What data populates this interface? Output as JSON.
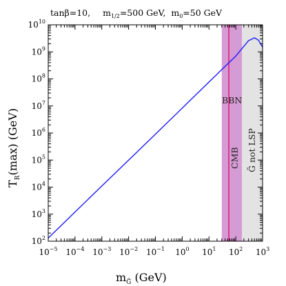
{
  "chart_data": {
    "type": "line",
    "title": "tanβ=10,   m1/2=500 GeV,  m0=50 GeV",
    "title_parts": {
      "tanb": "tanβ=10,",
      "mhalf_base": "m",
      "mhalf_sub": "1/2",
      "mhalf_val": "=500 GeV,",
      "m0_base": "m",
      "m0_sub": "0",
      "m0_val": "=50 GeV"
    },
    "xlabel": {
      "base": "m",
      "sub": "G̃",
      "rest": "  (GeV)"
    },
    "ylabel": {
      "base": "T",
      "sub": "R",
      "rest": "(max)  (GeV)"
    },
    "x_scale": "log",
    "y_scale": "log",
    "xlim": [
      1e-05,
      1000
    ],
    "ylim": [
      100,
      10000000000.0
    ],
    "x_ticks": [
      {
        "value": 1e-05,
        "base": "10",
        "exp": "−5"
      },
      {
        "value": 0.0001,
        "base": "10",
        "exp": "−4"
      },
      {
        "value": 0.001,
        "base": "10",
        "exp": "−3"
      },
      {
        "value": 0.01,
        "base": "10",
        "exp": "−2"
      },
      {
        "value": 0.1,
        "base": "10",
        "exp": "−1"
      },
      {
        "value": 1,
        "base": "10",
        "exp": "0"
      },
      {
        "value": 10,
        "base": "10",
        "exp": "1"
      },
      {
        "value": 100,
        "base": "10",
        "exp": "2"
      },
      {
        "value": 1000,
        "base": "10",
        "exp": "3"
      }
    ],
    "y_ticks": [
      {
        "value": 100,
        "base": "10",
        "exp": "2"
      },
      {
        "value": 1000,
        "base": "10",
        "exp": "3"
      },
      {
        "value": 10000,
        "base": "10",
        "exp": "4"
      },
      {
        "value": 100000,
        "base": "10",
        "exp": "5"
      },
      {
        "value": 1000000,
        "base": "10",
        "exp": "6"
      },
      {
        "value": 10000000,
        "base": "10",
        "exp": "7"
      },
      {
        "value": 100000000,
        "base": "10",
        "exp": "8"
      },
      {
        "value": 1000000000,
        "base": "10",
        "exp": "9"
      },
      {
        "value": 10000000000,
        "base": "10",
        "exp": "10"
      }
    ],
    "grid": false,
    "series": [
      {
        "color": "#1a1aff",
        "x": [
          1e-05,
          0.0001,
          0.001,
          0.01,
          0.1,
          1,
          10,
          50,
          100,
          200,
          300,
          500,
          700,
          1000
        ],
        "y": [
          130.0,
          1200.0,
          11000.0,
          99000.0,
          900000.0,
          8300000.0,
          77000000.0,
          360000000.0,
          700000000.0,
          1600000000.0,
          2600000000.0,
          3300000000.0,
          2700000000.0,
          1500000000.0
        ]
      }
    ],
    "regions": [
      {
        "name": "BBN",
        "label": "BBN",
        "x_range": [
          30,
          170
        ],
        "color": "#d59bd4"
      },
      {
        "name": "gravitino-not-lsp",
        "label": "G̃ not LSP",
        "x_range": [
          170,
          1000
        ],
        "color": "#e3e3e3"
      }
    ],
    "lines": [
      {
        "name": "CMB",
        "label": "CMB",
        "x": 55,
        "color": "#e0207a"
      }
    ]
  }
}
